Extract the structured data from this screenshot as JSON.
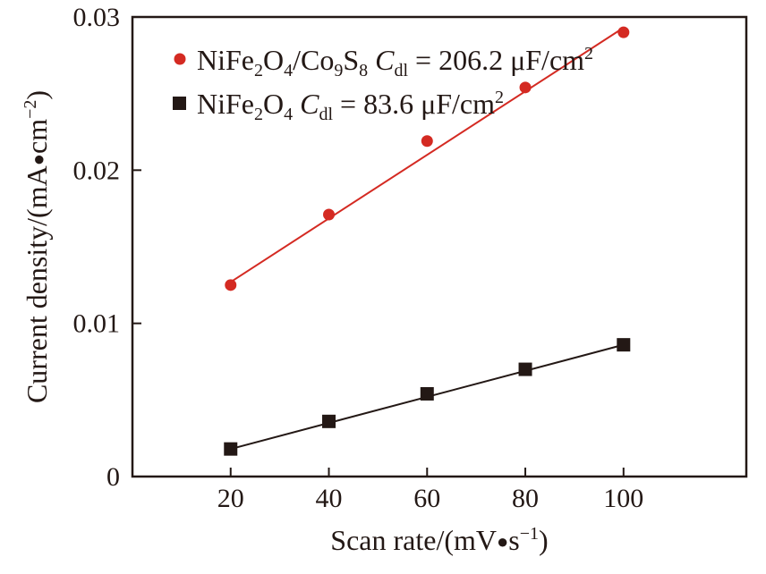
{
  "chart_data": {
    "type": "scatter",
    "xlabel": "Scan rate/(mV•s⁻¹)",
    "ylabel": "Current density/(mA•cm⁻²)",
    "xlim": [
      0,
      125
    ],
    "ylim": [
      0,
      0.03
    ],
    "x_ticks": [
      "20",
      "40",
      "60",
      "80",
      "100"
    ],
    "y_ticks": [
      "0",
      "0.01",
      "0.02",
      "0.03"
    ],
    "grid": false,
    "legend_position": "top-left",
    "series": [
      {
        "name": "NiFe₂O₄/Co₉S₈ C_dl = 206.2 μF/cm²",
        "marker": "circle",
        "color": "#d42a22",
        "x": [
          20,
          40,
          60,
          80,
          100
        ],
        "y": [
          0.0125,
          0.0171,
          0.0219,
          0.0254,
          0.029
        ],
        "fit": {
          "x": [
            20,
            100
          ],
          "y": [
            0.0127,
            0.0293
          ]
        }
      },
      {
        "name": "NiFe₂O₄ C_dl = 83.6 μF/cm²",
        "marker": "square",
        "color": "#231815",
        "x": [
          20,
          40,
          60,
          80,
          100
        ],
        "y": [
          0.0018,
          0.0036,
          0.0054,
          0.007,
          0.0086
        ],
        "fit": {
          "x": [
            20,
            100
          ],
          "y": [
            0.0018,
            0.0086
          ]
        }
      }
    ]
  }
}
